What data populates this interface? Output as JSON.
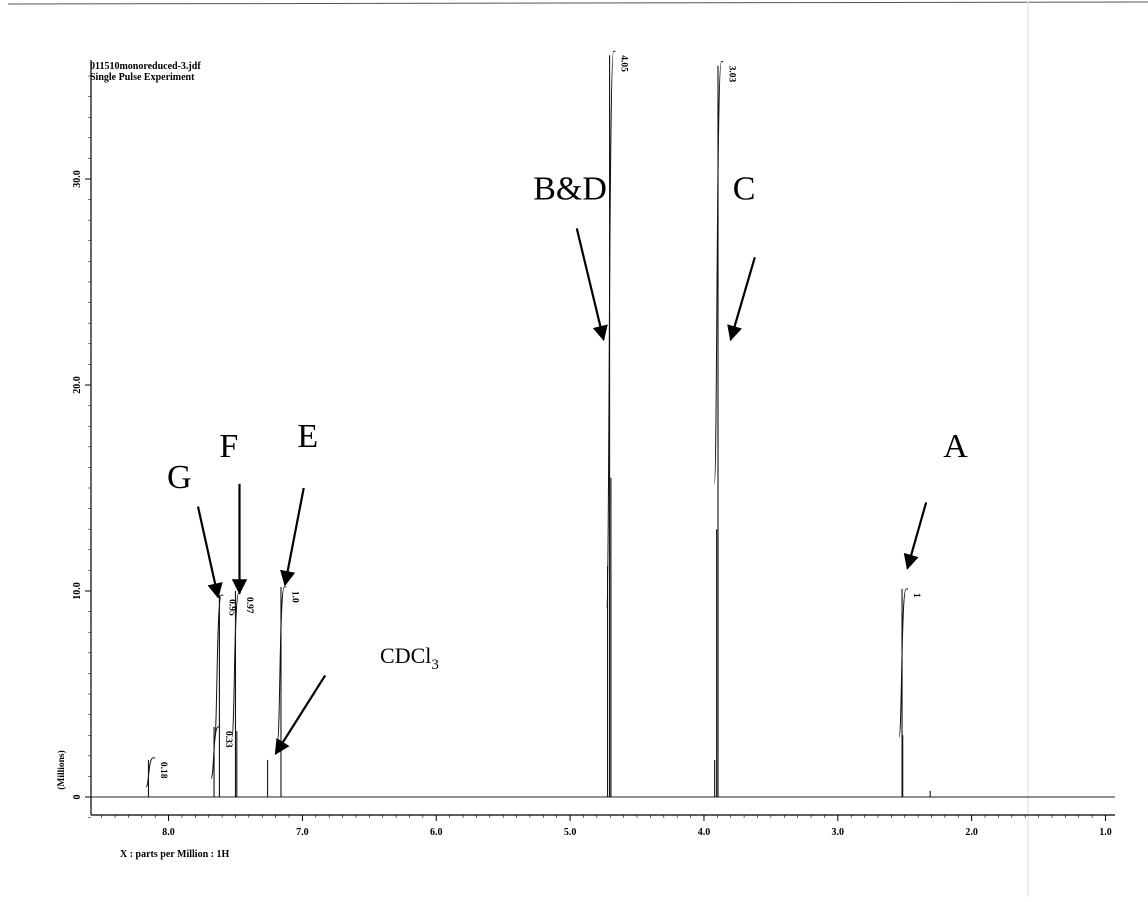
{
  "header": {
    "filename": "011510monoreduced-3.jdf",
    "experiment": "Single Pulse Experiment"
  },
  "chart_data": {
    "type": "line",
    "xlabel": "X : parts per Million : 1H",
    "ylabel": "(Millions)",
    "xlim": [
      8.5,
      1.0
    ],
    "ylim": [
      -1.0,
      36.0
    ],
    "x_reversed": true,
    "grid": false,
    "x_ticks": [
      8.0,
      7.0,
      6.0,
      5.0,
      4.0,
      3.0,
      2.0,
      1.0
    ],
    "x_tick_labels": [
      "8.0",
      "7.0",
      "6.0",
      "5.0",
      "4.0",
      "3.0",
      "2.0",
      "1.0"
    ],
    "y_ticks": [
      0,
      10,
      20,
      30
    ],
    "y_tick_labels": [
      "0",
      "10.0",
      "20.0",
      "30.0"
    ],
    "peaks": [
      {
        "ppm": 8.15,
        "height": 1.8
      },
      {
        "ppm": 7.66,
        "height": 3.4
      },
      {
        "ppm": 7.62,
        "height": 9.8
      },
      {
        "ppm": 7.5,
        "height": 10.0
      },
      {
        "ppm": 7.49,
        "height": 3.2
      },
      {
        "ppm": 7.26,
        "height": 1.8
      },
      {
        "ppm": 7.16,
        "height": 10.2
      },
      {
        "ppm": 4.72,
        "height": 11.2
      },
      {
        "ppm": 4.705,
        "height": 36.0
      },
      {
        "ppm": 4.695,
        "height": 15.5
      },
      {
        "ppm": 3.92,
        "height": 1.8
      },
      {
        "ppm": 3.905,
        "height": 13.0
      },
      {
        "ppm": 3.895,
        "height": 35.5
      },
      {
        "ppm": 2.52,
        "height": 10.1
      },
      {
        "ppm": 2.515,
        "height": 3.0
      },
      {
        "ppm": 2.31,
        "height": 0.3
      }
    ],
    "integrals": [
      {
        "label": "0.18",
        "ppm": 8.13,
        "top": 1.9,
        "step": 1.4
      },
      {
        "label": "0.33",
        "ppm": 7.645,
        "top": 3.4,
        "step": 2.5
      },
      {
        "label": "0.95",
        "ppm": 7.62,
        "top": 9.8,
        "step": 7.0
      },
      {
        "label": "0.97",
        "ppm": 7.49,
        "top": 9.9,
        "step": 7.0
      },
      {
        "label": "1.0",
        "ppm": 7.15,
        "top": 10.2,
        "step": 7.5
      },
      {
        "label": "4.05",
        "ppm": 4.69,
        "top": 36.2,
        "step": 27.0
      },
      {
        "label": "3.03",
        "ppm": 3.885,
        "top": 35.7,
        "step": 20.5
      },
      {
        "label": "1",
        "ppm": 2.505,
        "top": 10.1,
        "step": 7.2
      }
    ],
    "annotations": [
      {
        "text": "B&D",
        "tx": 5.0,
        "ty": 29.0,
        "from": [
          4.95,
          27.6
        ],
        "to": [
          4.75,
          22.2
        ]
      },
      {
        "text": "C",
        "tx": 3.7,
        "ty": 29.0,
        "from": [
          3.62,
          26.2
        ],
        "to": [
          3.8,
          22.2
        ]
      },
      {
        "text": "G",
        "tx": 7.92,
        "ty": 15.0,
        "from": [
          7.78,
          14.1
        ],
        "to": [
          7.63,
          9.7
        ]
      },
      {
        "text": "F",
        "tx": 7.55,
        "ty": 16.5,
        "from": [
          7.47,
          15.2
        ],
        "to": [
          7.47,
          9.9
        ]
      },
      {
        "text": "E",
        "tx": 6.96,
        "ty": 17.0,
        "from": [
          6.99,
          15.0
        ],
        "to": [
          7.13,
          10.3
        ]
      },
      {
        "text": "A",
        "tx": 2.12,
        "ty": 16.5,
        "from": [
          2.34,
          14.3
        ],
        "to": [
          2.48,
          11.1
        ]
      },
      {
        "text": "CDCl",
        "sub": "3",
        "tx": 6.2,
        "ty": 6.5,
        "from": [
          6.83,
          5.9
        ],
        "to": [
          7.2,
          2.1
        ]
      }
    ]
  }
}
